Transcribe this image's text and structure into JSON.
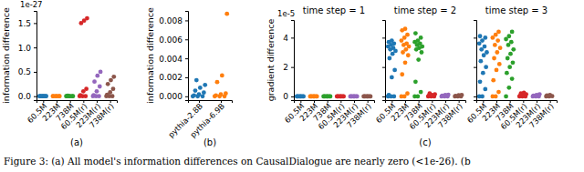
{
  "chart_data": [
    {
      "type": "strip",
      "y_label": "information difference",
      "x_label": "(a)",
      "annotations": [
        "1e-27"
      ],
      "categories": [
        "60.5M",
        "223M",
        "738M",
        "60.5M(r)",
        "223M(r)",
        "738M(r)"
      ],
      "colors": [
        "#1f77b4",
        "#ff7f0e",
        "#2ca02c",
        "#d62728",
        "#9467bd",
        "#8c564b"
      ],
      "values": [
        [
          0,
          0,
          0,
          0,
          0,
          0,
          0,
          0
        ],
        [
          0,
          0,
          0,
          0,
          0,
          0
        ],
        [
          0,
          0,
          0,
          0,
          0,
          0,
          0.01
        ],
        [
          0,
          0,
          0,
          0.02,
          0.1,
          0.15,
          1.5,
          1.55,
          1.6
        ],
        [
          0,
          0,
          0,
          0.02,
          0.1,
          0.2,
          0.3,
          0.42,
          0.5
        ],
        [
          0,
          0,
          0,
          0.03,
          0.08,
          0.15,
          0.25,
          0.33,
          0.4
        ]
      ],
      "ylim": [
        -0.08,
        1.75
      ],
      "yticks": [
        {
          "value": 0,
          "label": "0.0"
        },
        {
          "value": 0.5,
          "label": "0.5"
        },
        {
          "value": 1,
          "label": "1.0"
        },
        {
          "value": 1.5,
          "label": "1.5"
        }
      ]
    },
    {
      "type": "strip",
      "y_label": "information difference",
      "x_label": "(b)",
      "categories": [
        "pythia-2.8B",
        "pythia-6.9B"
      ],
      "colors": [
        "#1f77b4",
        "#ff7f0e"
      ],
      "values": [
        [
          0,
          0,
          0,
          0.0001,
          0.0002,
          0.0004,
          0.0006,
          0.0009,
          0.0012,
          0.0017
        ],
        [
          0,
          0,
          0,
          0.0001,
          0.0002,
          0.0003,
          0.0015,
          0.0022,
          0.0087
        ]
      ],
      "ylim": [
        -0.0004,
        0.009
      ],
      "yticks": [
        {
          "value": 0,
          "label": "0.000"
        },
        {
          "value": 0.002,
          "label": "0.002"
        },
        {
          "value": 0.004,
          "label": "0.004"
        },
        {
          "value": 0.006,
          "label": "0.006"
        },
        {
          "value": 0.008,
          "label": "0.008"
        }
      ]
    },
    {
      "type": "strip",
      "title": "time step = 1",
      "y_label": "gradient difference",
      "annotations": [
        "1e-5"
      ],
      "categories": [
        "60.5M",
        "223M",
        "738M",
        "60.5M(r)",
        "223M(r)",
        "738M(r)"
      ],
      "colors": [
        "#1f77b4",
        "#ff7f0e",
        "#2ca02c",
        "#d62728",
        "#9467bd",
        "#8c564b"
      ],
      "values": [
        [
          0,
          0,
          0,
          0,
          0,
          0,
          0,
          0
        ],
        [
          0,
          0,
          0,
          0,
          0,
          0,
          0,
          0
        ],
        [
          0,
          0,
          0,
          0,
          0,
          0,
          0,
          0
        ],
        [
          0,
          0,
          0,
          0,
          0,
          0,
          0,
          0
        ],
        [
          0,
          0,
          0,
          0,
          0,
          0,
          0,
          0
        ],
        [
          0,
          0,
          0,
          0,
          0,
          0,
          0,
          0
        ]
      ],
      "ylim": [
        -0.25,
        5.2
      ],
      "yticks": [
        0,
        2,
        4
      ]
    },
    {
      "type": "strip",
      "title": "time step = 2",
      "x_label": "(c)",
      "tick_labels": "x",
      "categories": [
        "60.5M",
        "223M",
        "738M",
        "60.5M(r)",
        "223M(r)",
        "738M(r)"
      ],
      "colors": [
        "#1f77b4",
        "#ff7f0e",
        "#2ca02c",
        "#d62728",
        "#9467bd",
        "#8c564b"
      ],
      "values": [
        [
          0,
          0,
          0,
          0.1,
          1.3,
          1.8,
          2.6,
          2.9,
          3.1,
          3.2,
          3.3,
          3.4,
          3.5,
          3.6,
          3.7,
          3.8
        ],
        [
          0,
          0,
          0.2,
          1.5,
          2.3,
          2.8,
          3.0,
          3.2,
          3.4,
          3.5,
          3.6,
          3.8,
          4.0,
          4.2,
          4.5,
          4.6
        ],
        [
          0,
          0,
          0.3,
          1.0,
          2.5,
          3.0,
          3.2,
          3.3,
          3.4,
          3.5,
          3.6,
          3.7,
          3.8,
          4.0,
          4.3
        ],
        [
          0,
          0,
          0,
          0.05,
          0.1,
          0.15,
          0.2
        ],
        [
          0,
          0,
          0,
          0.05,
          0.1,
          0.12
        ],
        [
          0,
          0,
          0,
          0.03,
          0.08,
          0.1
        ]
      ],
      "ylim": [
        -0.25,
        5.2
      ],
      "yticks": [
        0,
        2,
        4
      ]
    },
    {
      "type": "strip",
      "title": "time step = 3",
      "tick_labels": "x",
      "categories": [
        "60.5M",
        "223M",
        "738M",
        "60.5M(r)",
        "223M(r)",
        "738M(r)"
      ],
      "colors": [
        "#1f77b4",
        "#ff7f0e",
        "#2ca02c",
        "#d62728",
        "#9467bd",
        "#8c564b"
      ],
      "values": [
        [
          0,
          0,
          0.5,
          1.0,
          1.6,
          2.0,
          2.4,
          2.8,
          3.0,
          3.2,
          3.4,
          3.6,
          3.8,
          4.0,
          4.1
        ],
        [
          0,
          0,
          0.3,
          1.1,
          1.8,
          2.2,
          2.6,
          3.0,
          3.3,
          3.5,
          3.8,
          4.0,
          4.2,
          4.4
        ],
        [
          0,
          0.6,
          1.2,
          1.6,
          2.0,
          2.3,
          2.6,
          2.9,
          3.2,
          3.5,
          3.7,
          3.9,
          4.1,
          4.4
        ],
        [
          0,
          0,
          0,
          0.05,
          0.1,
          0.15,
          0.2,
          0.25
        ],
        [
          0,
          0,
          0,
          0.05,
          0.1,
          0.15
        ],
        [
          0,
          0,
          0.02,
          0.06,
          0.1
        ]
      ],
      "ylim": [
        -0.25,
        5.2
      ],
      "yticks": [
        0,
        2,
        4
      ]
    }
  ],
  "caption": "Figure 3: (a) All model's information differences on CausalDialogue are nearly zero (<1e-26). (b"
}
